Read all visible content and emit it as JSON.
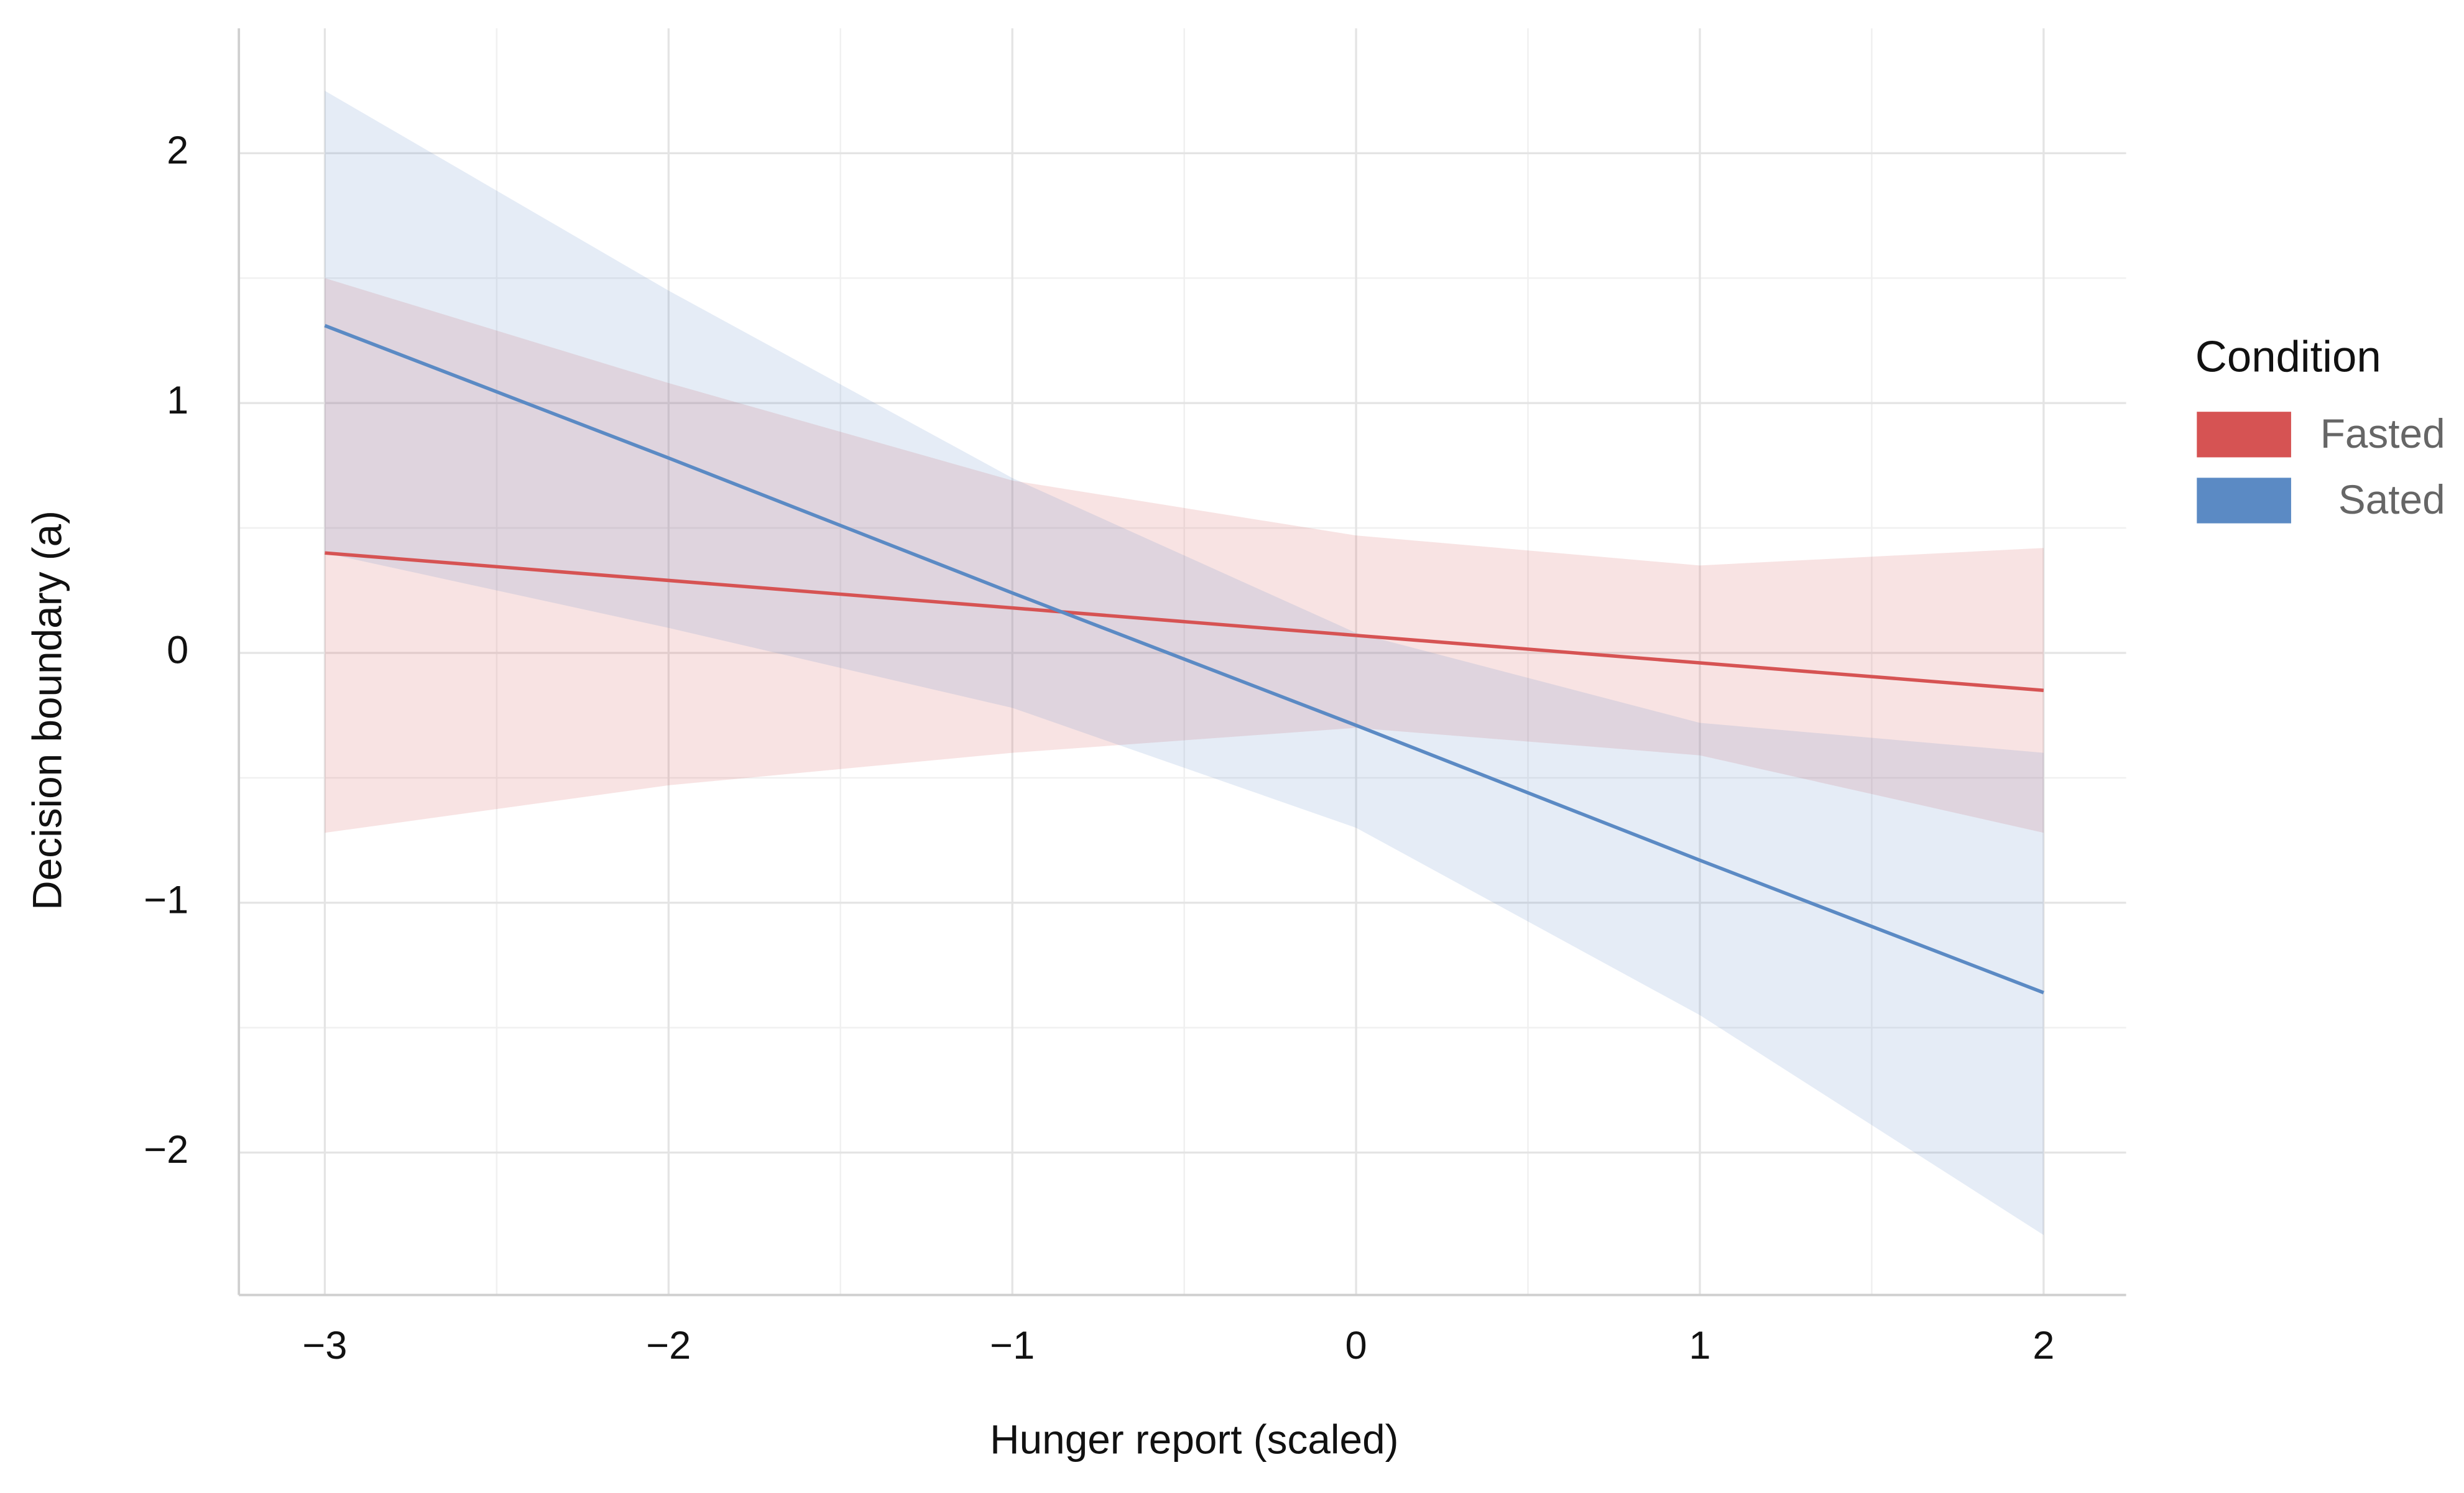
{
  "chart_data": {
    "type": "line",
    "x_label": "Hunger report (scaled)",
    "y_label": "Decision boundary (a)",
    "x": [
      -3,
      -2,
      -1,
      0,
      1,
      2
    ],
    "series": [
      {
        "name": "Fasted",
        "color": "#d65353",
        "values": [
          0.4,
          0.29,
          0.18,
          0.07,
          -0.04,
          -0.15
        ],
        "upper": [
          1.5,
          1.08,
          0.69,
          0.47,
          0.35,
          0.42
        ],
        "lower": [
          -0.72,
          -0.53,
          -0.4,
          -0.3,
          -0.41,
          -0.72
        ]
      },
      {
        "name": "Sated",
        "color": "#5b8ac4",
        "values": [
          1.31,
          0.78,
          0.24,
          -0.29,
          -0.83,
          -1.36
        ],
        "upper": [
          2.25,
          1.45,
          0.7,
          0.08,
          -0.28,
          -0.4
        ],
        "lower": [
          0.4,
          0.1,
          -0.22,
          -0.7,
          -1.45,
          -2.33
        ]
      }
    ],
    "legend_title": "Condition",
    "legend": "right",
    "grid": true,
    "xlim": [
      -3.25,
      2.24
    ],
    "ylim": [
      -2.57,
      2.5
    ],
    "xticks": [
      {
        "value": -3,
        "label": "−3"
      },
      {
        "value": -2,
        "label": "−2"
      },
      {
        "value": -1,
        "label": "−1"
      },
      0,
      1,
      2
    ],
    "yticks": [
      {
        "value": -2,
        "label": "−2"
      },
      {
        "value": -1,
        "label": "−1"
      },
      0,
      1,
      2
    ]
  }
}
